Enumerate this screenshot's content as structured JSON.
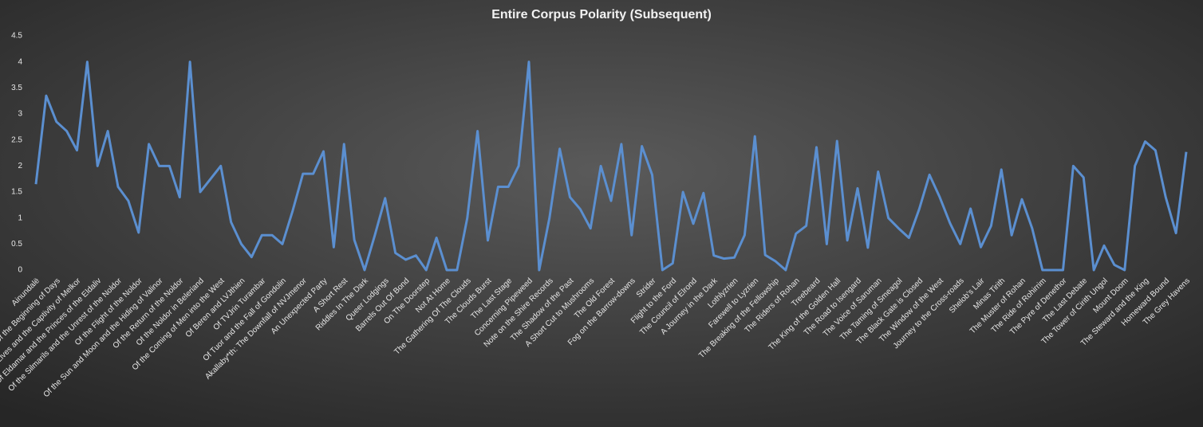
{
  "chart_data": {
    "type": "line",
    "title": "Entire Corpus Polarity (Subsequent)",
    "color": "#5b8fd0",
    "grid": false,
    "ylim": [
      0,
      4.5
    ],
    "yticks": [
      0,
      0.5,
      1,
      1.5,
      2,
      2.5,
      3,
      3.5,
      4,
      4.5
    ],
    "categories": [
      "Ainundalë",
      null,
      "Of the Beginning of Days",
      null,
      "Of the Coming of the Elves and the Captivity of Melkor",
      null,
      "Of Eldamar and the Princes of the Eldaliv",
      null,
      "Of the Silmarils and the Unrest of the Noldor",
      null,
      "Of the Flight of the Noldor",
      null,
      "Of the Sun and Moon and the Hiding of Valinor",
      null,
      "Of the Return of the Noldor",
      null,
      "Of the Noldor in Beleriand",
      null,
      "Of the Coming of Men into the West",
      null,
      "Of Beren and LVJthien",
      null,
      "Of TVJrin Turambar",
      null,
      "Of Tuor and the Fall of Gondolin",
      null,
      "Akallaby*th: The Downfall of NVJmenor",
      null,
      "An Unexpected Party",
      null,
      "A Short Rest",
      null,
      "Riddles In The Dark",
      null,
      "Queer Lodgings",
      null,
      "Barrels Out Of Bond",
      null,
      "On The Doorstep",
      null,
      "Not At Home",
      null,
      "The Gathering Of The Clouds",
      null,
      "The Clouds Burst",
      null,
      "The Last Stage",
      null,
      "Concerning Pipeweed",
      null,
      "Note on the Shire Records",
      null,
      "The Shadow of the Past",
      null,
      "A Short Cut to Mushrooms",
      null,
      "The Old Forest",
      null,
      "Fog on the Barrow-downs",
      null,
      "Strider",
      null,
      "Flight to the Ford",
      null,
      "The Council of Elrond",
      null,
      "A Journey in the Dark",
      null,
      "Lothlyzrien",
      null,
      "Farewell to Lyzrien",
      null,
      "The Breaking of the Fellowship",
      null,
      "The Riders of Rohan",
      null,
      "Treebeard",
      null,
      "The King of the Golden Hall",
      null,
      "The Road to Isengard",
      null,
      "The Voice of Saruman",
      null,
      "The Taming of Smeagol",
      null,
      "The Black Gate is Closed",
      null,
      "The Window of the West",
      null,
      "Journey to the Cross-roads",
      null,
      "Shelob's Lair",
      null,
      "Minas Tirith",
      null,
      "The Muster of Rohan",
      null,
      "The Ride of Rohirrim",
      null,
      "The Pyre of Denethor",
      null,
      "The Last Debate",
      null,
      "The Tower of Cirith Ungol",
      null,
      "Mount Doom",
      null,
      "The Steward and the King",
      null,
      "Homeward Bound",
      null,
      "The Grey Havens"
    ],
    "values": [
      1.65,
      3.35,
      2.85,
      2.67,
      2.3,
      4.0,
      2.0,
      2.67,
      1.6,
      1.33,
      0.72,
      2.42,
      2.0,
      2.0,
      1.4,
      4.0,
      1.5,
      1.75,
      2.0,
      0.92,
      0.5,
      0.25,
      0.67,
      0.67,
      0.5,
      1.14,
      1.85,
      1.85,
      2.28,
      0.44,
      2.42,
      0.58,
      0.0,
      0.67,
      1.38,
      0.33,
      0.2,
      0.28,
      0.0,
      0.62,
      0.0,
      0.0,
      1.0,
      2.67,
      0.57,
      1.6,
      1.6,
      2.0,
      4.0,
      0.0,
      1.0,
      2.33,
      1.4,
      1.17,
      0.8,
      2.0,
      1.33,
      2.42,
      0.67,
      2.38,
      1.83,
      0.0,
      0.13,
      1.5,
      0.89,
      1.48,
      0.28,
      0.22,
      0.24,
      0.67,
      2.57,
      0.29,
      0.17,
      0.0,
      0.7,
      0.85,
      2.36,
      0.5,
      2.48,
      0.57,
      1.57,
      0.43,
      1.89,
      1.0,
      0.8,
      0.62,
      1.17,
      1.83,
      1.4,
      0.9,
      0.5,
      1.18,
      0.44,
      0.85,
      1.93,
      0.67,
      1.36,
      0.8,
      0.0,
      0.0,
      0.0,
      2.0,
      1.78,
      0.0,
      0.47,
      0.1,
      0.0,
      2.0,
      2.47,
      2.3,
      1.4,
      0.71,
      2.27
    ]
  }
}
